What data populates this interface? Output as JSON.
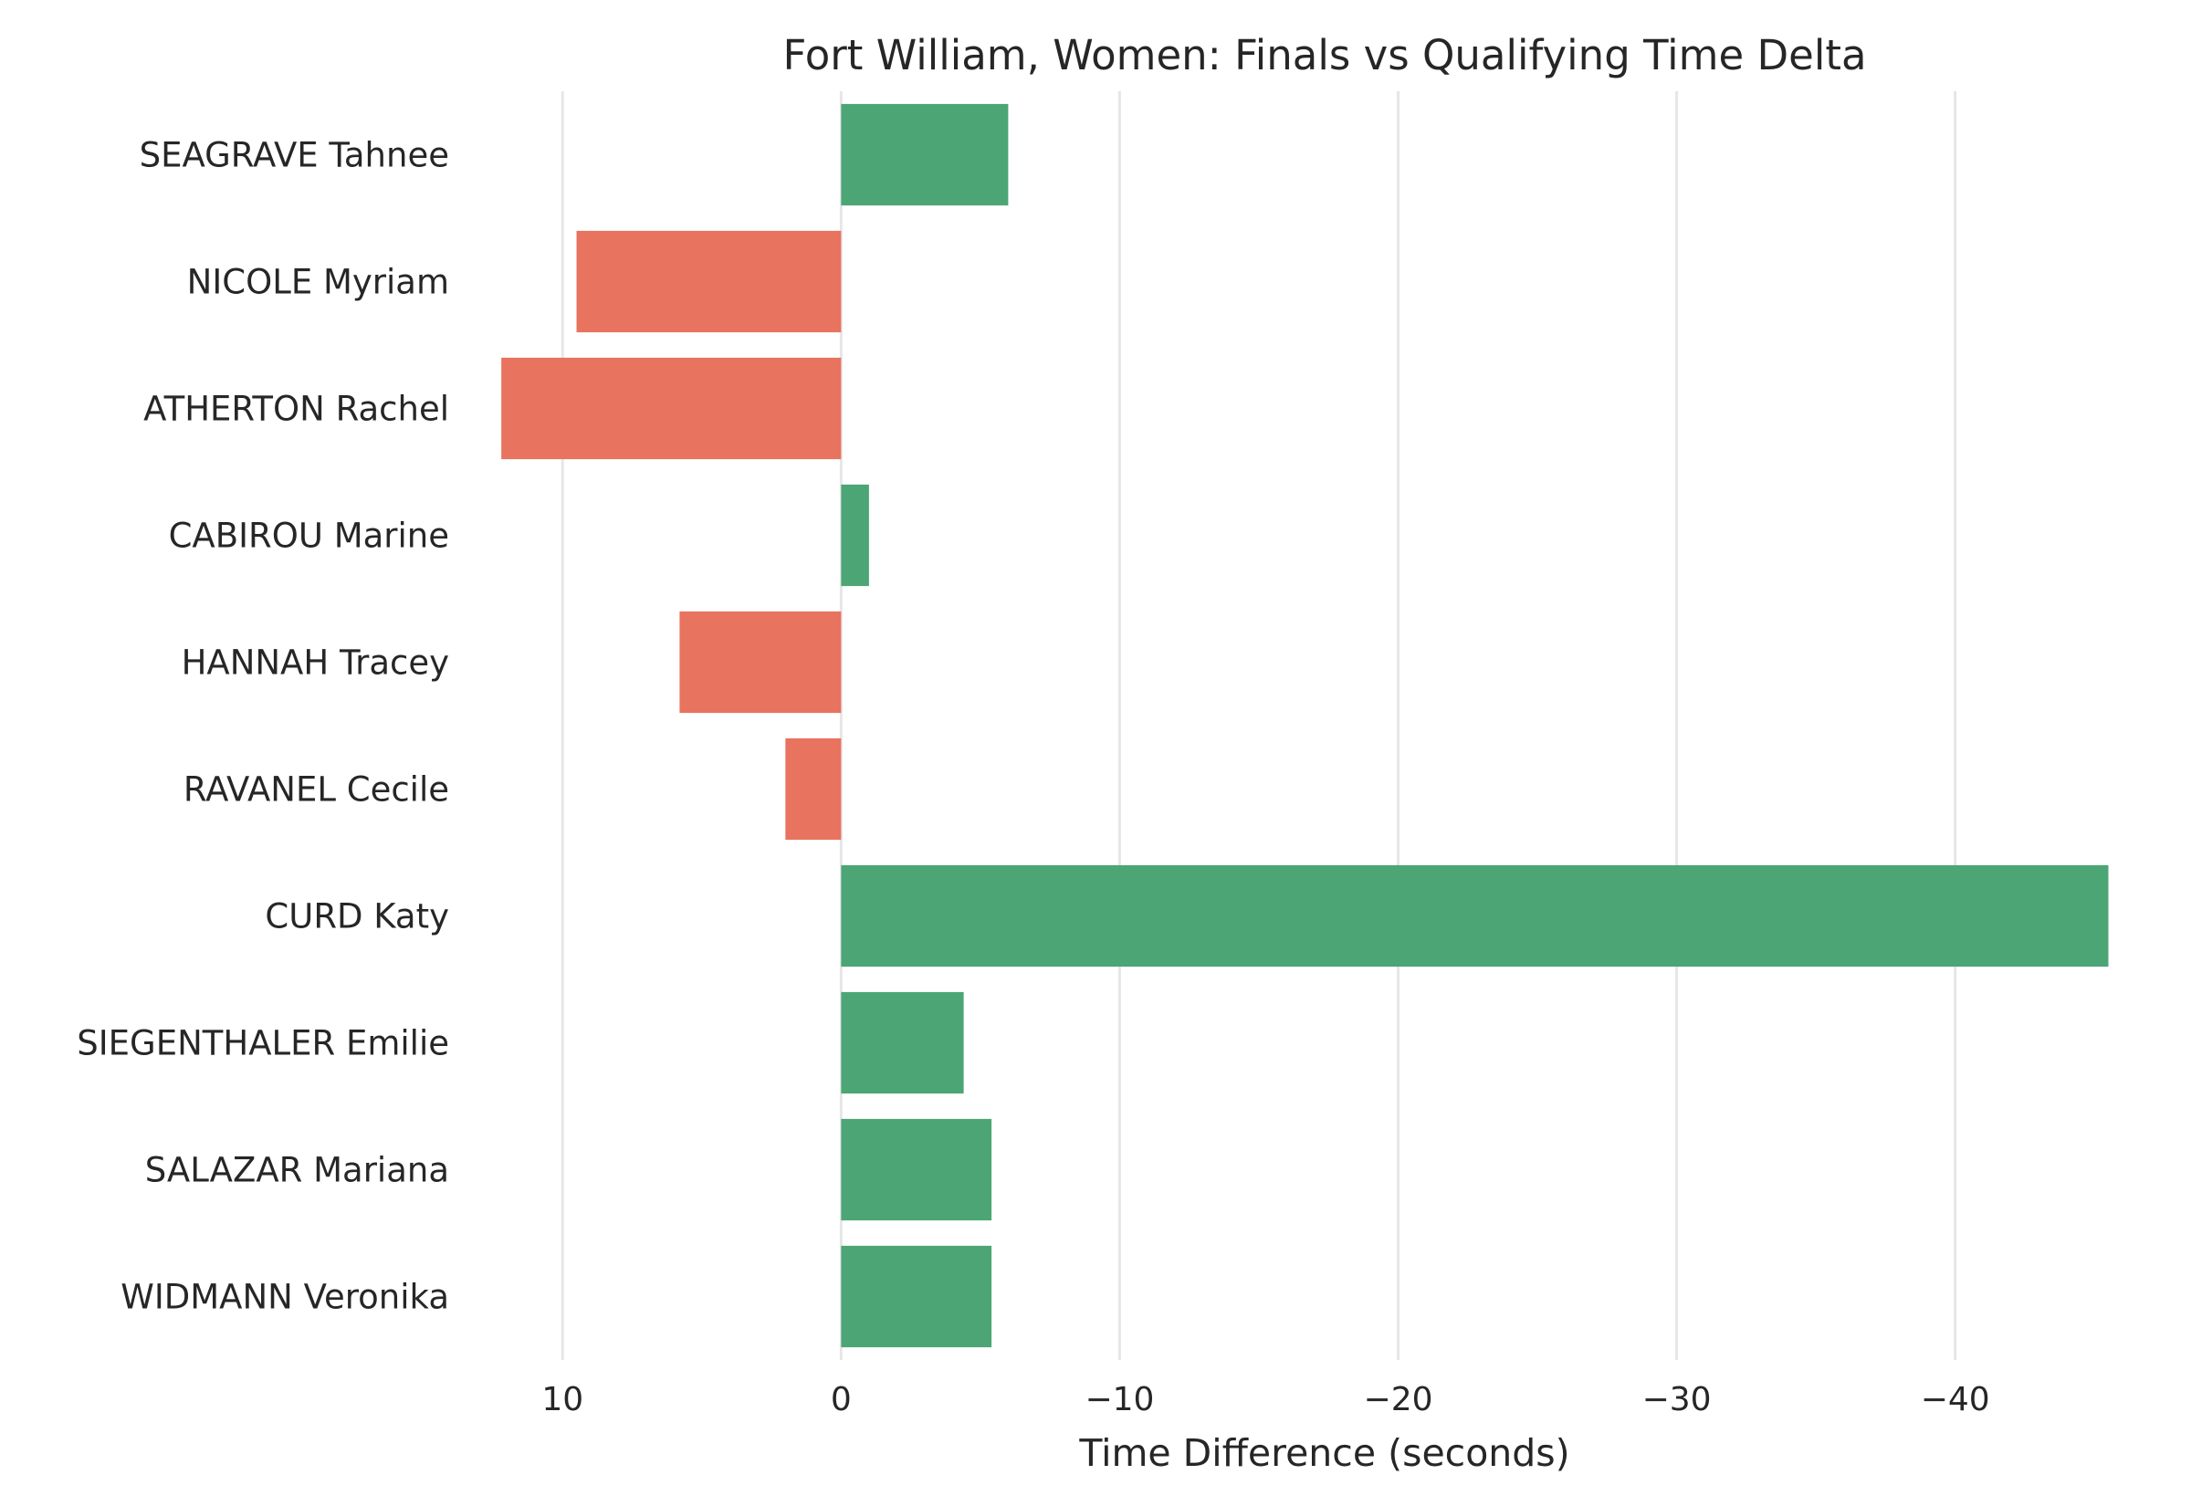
{
  "chart_data": {
    "type": "bar",
    "orientation": "horizontal",
    "title": "Fort William, Women: Finals vs Qualifying Time Delta",
    "xlabel": "Time Difference (seconds)",
    "ylabel": "",
    "x_axis_inverted": true,
    "xlim": [
      12.5,
      -46.5
    ],
    "xticks": [
      10,
      0,
      -10,
      -20,
      -30,
      -40
    ],
    "xtick_labels": [
      "10",
      "0",
      "−10",
      "−20",
      "−30",
      "−40"
    ],
    "grid": "vertical",
    "categories": [
      "SEAGRAVE Tahnee",
      "NICOLE Myriam",
      "ATHERTON Rachel",
      "CABIROU Marine",
      "HANNAH Tracey",
      "RAVANEL Cecile",
      "CURD Katy",
      "SIEGENTHALER Emilie",
      "SALAZAR Mariana",
      "WIDMANN Veronika"
    ],
    "values": [
      -6.0,
      9.5,
      12.2,
      -1.0,
      5.8,
      2.0,
      -45.5,
      -4.4,
      -5.4,
      -5.4
    ],
    "colors": {
      "negative": "#4ca574",
      "positive": "#e8735f"
    }
  }
}
